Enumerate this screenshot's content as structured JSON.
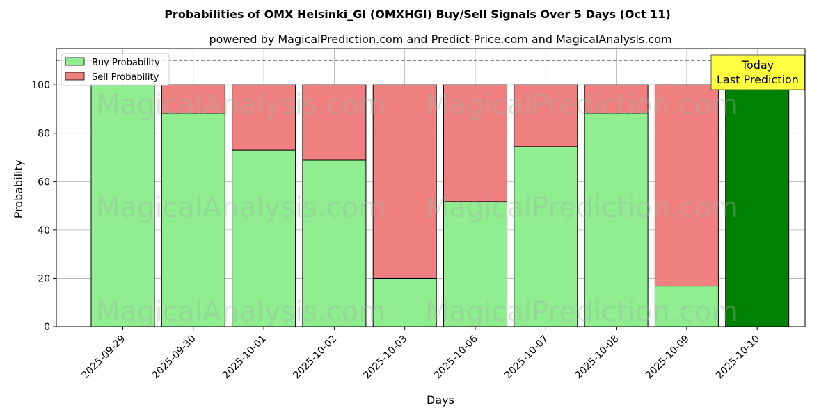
{
  "chart_data": {
    "type": "bar",
    "stacked": true,
    "title": "Probabilities of OMX Helsinki_GI (OMXHGI) Buy/Sell Signals Over 5 Days (Oct 11)",
    "subtitle": "powered by MagicalPrediction.com and Predict-Price.com and MagicalAnalysis.com",
    "xlabel": "Days",
    "ylabel": "Probability",
    "ylim": [
      0,
      115
    ],
    "yticks": [
      0,
      20,
      40,
      60,
      80,
      100
    ],
    "grid": true,
    "legend_position": "top-left",
    "reference_line": 110,
    "categories": [
      "2025-09-29",
      "2025-09-30",
      "2025-10-01",
      "2025-10-02",
      "2025-10-03",
      "2025-10-06",
      "2025-10-07",
      "2025-10-08",
      "2025-10-09",
      "2025-10-10"
    ],
    "series": [
      {
        "name": "Buy Probability",
        "color": "#90ee90",
        "values": [
          100,
          88.3,
          73,
          69,
          20,
          51.8,
          74.5,
          88.3,
          16.8,
          100
        ]
      },
      {
        "name": "Sell Probability",
        "color": "#f08080",
        "values": [
          0,
          11.7,
          27,
          31,
          80,
          48.2,
          25.5,
          11.7,
          83.2,
          0
        ]
      }
    ],
    "highlight": {
      "index": 9,
      "color": "#008000"
    },
    "annotation": {
      "line1": "Today",
      "line2": "Last Prediction",
      "background": "#ffff40"
    },
    "watermarks": [
      "MagicalAnalysis.com",
      "MagicalPrediction.com",
      "MagicalAnalysis.com",
      "MagicalPrediction.com",
      "MagicalAnalysis.com",
      "MagicalPrediction.com"
    ]
  }
}
